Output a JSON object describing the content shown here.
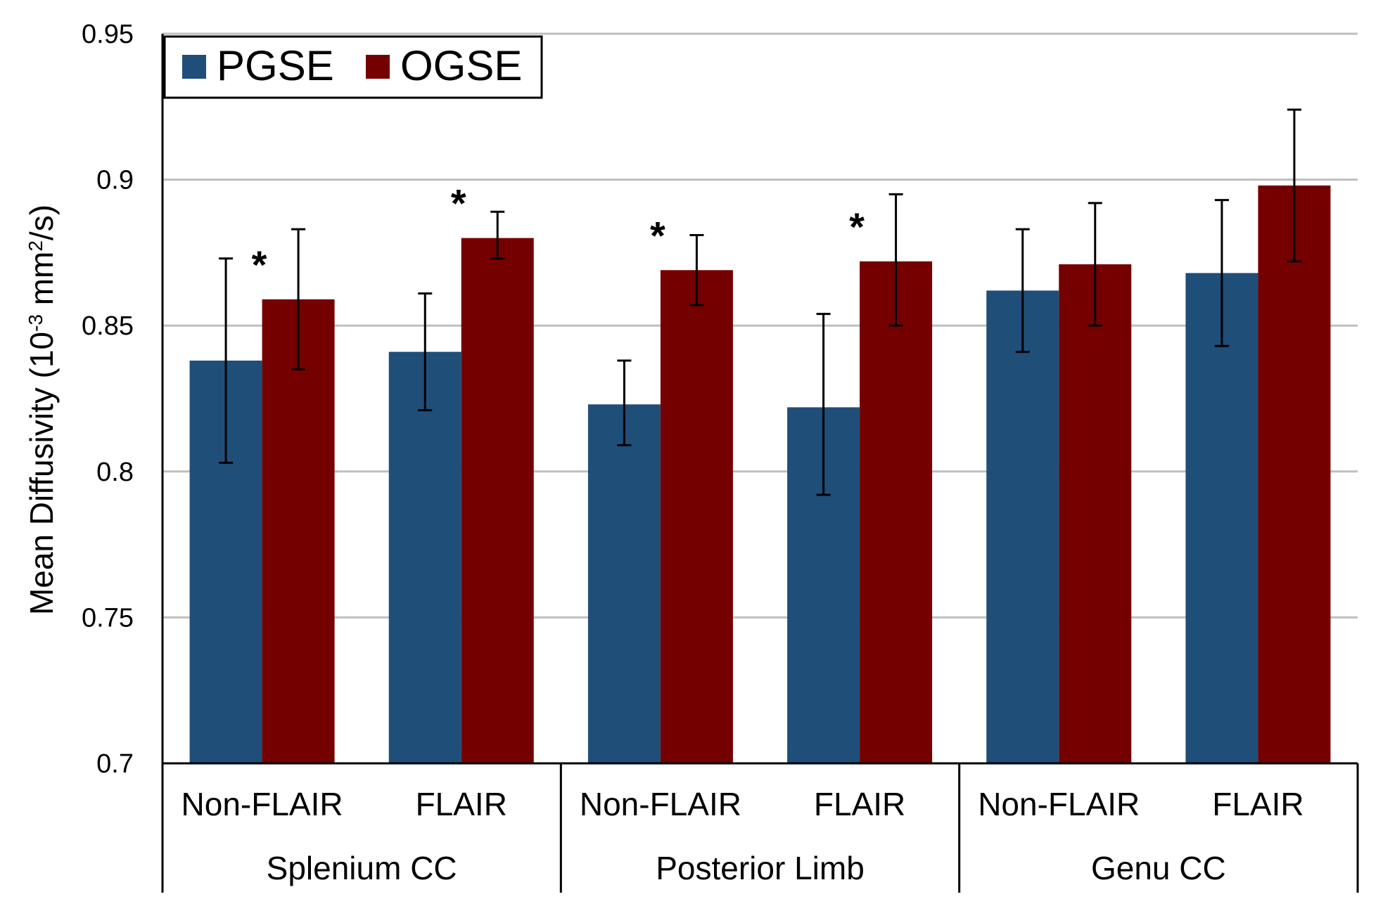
{
  "chart_data": {
    "type": "bar",
    "ylabel": {
      "prefix": "Mean  Diffusivity (10",
      "exp1": "-3",
      "mid": " mm",
      "exp2": "2",
      "suffix": "/s)"
    },
    "ylim": [
      0.7,
      0.95
    ],
    "yticks": [
      0.7,
      0.75,
      0.8,
      0.85,
      0.9,
      0.95
    ],
    "ytick_labels": [
      "0.7",
      "0.75",
      "0.8",
      "0.85",
      "0.9",
      "0.95"
    ],
    "grid": true,
    "legend_position": "top-left",
    "groups": [
      "Splenium CC",
      "Posterior Limb",
      "Genu CC"
    ],
    "categories": [
      "Non-FLAIR",
      "FLAIR",
      "Non-FLAIR",
      "FLAIR",
      "Non-FLAIR",
      "FLAIR"
    ],
    "series": [
      {
        "name": "PGSE",
        "color": "#1f4e79",
        "values": [
          0.838,
          0.841,
          0.823,
          0.822,
          0.862,
          0.868
        ],
        "error_low": [
          0.803,
          0.821,
          0.809,
          0.792,
          0.841,
          0.843
        ],
        "error_high": [
          0.873,
          0.861,
          0.838,
          0.854,
          0.883,
          0.893
        ]
      },
      {
        "name": "OGSE",
        "color": "#750000",
        "values": [
          0.859,
          0.88,
          0.869,
          0.872,
          0.871,
          0.898
        ],
        "error_low": [
          0.835,
          0.873,
          0.857,
          0.85,
          0.85,
          0.872
        ],
        "error_high": [
          0.883,
          0.889,
          0.881,
          0.895,
          0.892,
          0.924
        ]
      }
    ],
    "significance_marker": "*",
    "significant_categories": [
      0,
      1,
      2,
      3
    ]
  }
}
